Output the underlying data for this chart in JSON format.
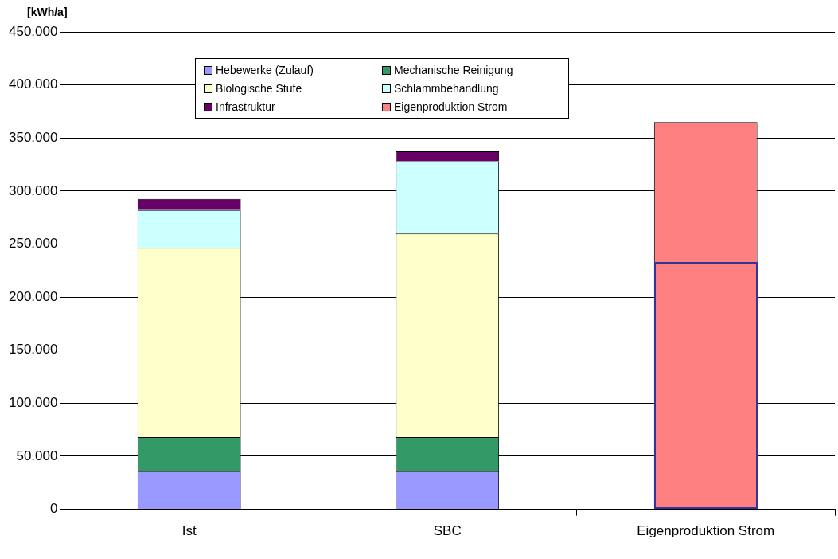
{
  "chart_data": {
    "type": "bar",
    "ylabel": "[kWh/a]",
    "categories": [
      "Ist",
      "SBC",
      "Eigenproduktion Strom"
    ],
    "stacked": true,
    "ylim": [
      0,
      450000
    ],
    "yticks": [
      {
        "value": 0,
        "label": "0"
      },
      {
        "value": 50000,
        "label": "50.000"
      },
      {
        "value": 100000,
        "label": "100.000"
      },
      {
        "value": 150000,
        "label": "150.000"
      },
      {
        "value": 200000,
        "label": "200.000"
      },
      {
        "value": 250000,
        "label": "250.000"
      },
      {
        "value": 300000,
        "label": "300.000"
      },
      {
        "value": 350000,
        "label": "350.000"
      },
      {
        "value": 400000,
        "label": "400.000"
      },
      {
        "value": 450000,
        "label": "450.000"
      }
    ],
    "grid": "y",
    "legend": "top",
    "series": [
      {
        "name": "Hebewerke (Zulauf)",
        "color": "#9999ff",
        "values": [
          36000,
          36000,
          null
        ]
      },
      {
        "name": "Mechanische Reinigung",
        "color": "#339966",
        "values": [
          32000,
          32000,
          null
        ]
      },
      {
        "name": "Biologische Stufe",
        "color": "#ffffcc",
        "values": [
          178500,
          192000,
          null
        ]
      },
      {
        "name": "Schlammbehandlung",
        "color": "#ccffff",
        "values": [
          35500,
          68000,
          null
        ]
      },
      {
        "name": "Infrastruktur",
        "color": "#660066",
        "values": [
          10500,
          9500,
          null
        ]
      },
      {
        "color": "#ff8080",
        "values": [
          null,
          null,
          233000
        ]
      },
      {
        "name": "Eigenproduktion Strom",
        "color": "#ff8080",
        "values": [
          null,
          null,
          132000
        ]
      }
    ]
  }
}
